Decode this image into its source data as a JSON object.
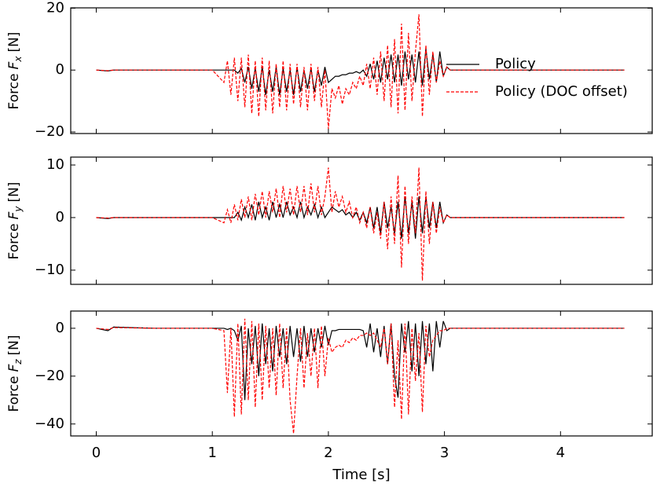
{
  "chart_data": [
    {
      "type": "line",
      "ylabel": "Force",
      "ylabel_symbol": "F",
      "ylabel_sub": "x",
      "ylabel_unit": "[N]",
      "xlim": [
        -0.22,
        4.79
      ],
      "xticks": [
        0,
        1,
        2,
        3,
        4
      ],
      "ylim": [
        -20.5,
        20.1
      ],
      "yticks": [
        {
          "value": -20,
          "label": "−20"
        },
        0,
        20
      ],
      "legend": "center right",
      "x": [
        0,
        0.1,
        0.15,
        0.5,
        1.0,
        1.1,
        1.13,
        1.16,
        1.19,
        1.22,
        1.25,
        1.28,
        1.31,
        1.34,
        1.37,
        1.4,
        1.43,
        1.46,
        1.49,
        1.52,
        1.55,
        1.58,
        1.61,
        1.64,
        1.67,
        1.7,
        1.73,
        1.76,
        1.79,
        1.82,
        1.85,
        1.88,
        1.91,
        1.94,
        1.97,
        2.0,
        2.03,
        2.06,
        2.09,
        2.12,
        2.15,
        2.18,
        2.21,
        2.24,
        2.27,
        2.3,
        2.33,
        2.36,
        2.39,
        2.42,
        2.45,
        2.48,
        2.51,
        2.54,
        2.57,
        2.6,
        2.63,
        2.66,
        2.69,
        2.72,
        2.75,
        2.78,
        2.81,
        2.84,
        2.87,
        2.9,
        2.93,
        2.96,
        2.99,
        3.02,
        3.05,
        3.1,
        3.5,
        4.0,
        4.55
      ],
      "series": [
        {
          "name": "Policy",
          "color": "#000000",
          "dash": "solid",
          "values": [
            0,
            -0.3,
            0,
            0,
            0,
            0,
            0,
            0,
            0,
            -1,
            0.5,
            -4,
            1,
            -6,
            0.5,
            -7,
            1,
            -8,
            0,
            -7,
            1,
            -8,
            0.5,
            -7,
            0,
            -8,
            1,
            -7,
            0,
            -6,
            0.5,
            -7,
            0,
            -5,
            1,
            -4,
            -3,
            -2,
            -2,
            -1.5,
            -1.5,
            -1,
            -1,
            -0.5,
            -1,
            0,
            -2,
            2,
            -3,
            3,
            -4,
            4,
            -3,
            5,
            -4,
            5,
            -5,
            6,
            -3,
            5,
            -4,
            6,
            -5,
            7,
            -3,
            5,
            -4,
            6,
            -2,
            1,
            0,
            0,
            0,
            0,
            0
          ]
        },
        {
          "name": "Policy (DOC offset)",
          "color": "#ff0000",
          "dash": "dashed",
          "values": [
            0,
            -0.2,
            0,
            0,
            0,
            -4,
            3,
            -8,
            4,
            -10,
            4,
            -12,
            5,
            -14,
            3,
            -15,
            4,
            -13,
            3,
            -14,
            2,
            -12,
            3,
            -13,
            2,
            -11,
            2,
            -12,
            1,
            -13,
            2,
            -10,
            1,
            -12,
            0,
            -19,
            -6,
            -9,
            -5,
            -11,
            -6,
            -8,
            -4,
            -6,
            -2,
            -5,
            2,
            -6,
            4,
            -8,
            6,
            -10,
            8,
            -12,
            10,
            -14,
            15,
            -13,
            12,
            -10,
            6,
            18,
            -15,
            8,
            -8,
            6,
            -4,
            3,
            -2,
            1,
            0,
            0,
            0,
            0,
            0
          ]
        }
      ]
    },
    {
      "type": "line",
      "ylabel": "Force",
      "ylabel_symbol": "F",
      "ylabel_sub": "y",
      "ylabel_unit": "[N]",
      "xlim": [
        -0.22,
        4.79
      ],
      "xticks": [
        0,
        1,
        2,
        3,
        4
      ],
      "ylim": [
        -12.7,
        11.5
      ],
      "yticks": [
        {
          "value": -10,
          "label": "−10"
        },
        0,
        10
      ],
      "x": [
        0,
        0.1,
        0.15,
        0.5,
        1.0,
        1.1,
        1.13,
        1.16,
        1.19,
        1.22,
        1.25,
        1.28,
        1.31,
        1.34,
        1.37,
        1.4,
        1.43,
        1.46,
        1.49,
        1.52,
        1.55,
        1.58,
        1.61,
        1.64,
        1.67,
        1.7,
        1.73,
        1.76,
        1.79,
        1.82,
        1.85,
        1.88,
        1.91,
        1.94,
        1.97,
        2.0,
        2.03,
        2.06,
        2.09,
        2.12,
        2.15,
        2.18,
        2.21,
        2.24,
        2.27,
        2.3,
        2.33,
        2.36,
        2.39,
        2.42,
        2.45,
        2.48,
        2.51,
        2.54,
        2.57,
        2.6,
        2.63,
        2.66,
        2.69,
        2.72,
        2.75,
        2.78,
        2.81,
        2.84,
        2.87,
        2.9,
        2.93,
        2.96,
        2.99,
        3.02,
        3.05,
        3.1,
        3.5,
        4.0,
        4.55
      ],
      "series": [
        {
          "color": "#000000",
          "dash": "solid",
          "values": [
            0,
            -0.2,
            0,
            0,
            0,
            0,
            0,
            0,
            0,
            1,
            -0.5,
            2,
            0,
            2.5,
            -0.5,
            3,
            0,
            2,
            -0.5,
            3,
            0,
            2.5,
            0,
            3,
            0.5,
            2,
            0,
            3,
            0,
            2,
            0.5,
            2.5,
            0,
            2,
            0,
            1,
            2,
            1.5,
            1,
            1.5,
            0.5,
            1,
            0,
            1,
            -0.5,
            1,
            -1,
            2,
            -2,
            2,
            -3,
            3,
            -2,
            2,
            -3,
            3,
            -4,
            4,
            -3,
            3,
            -4,
            4,
            -3,
            4,
            -2,
            3,
            -2,
            3,
            -1,
            0.5,
            0,
            0,
            0,
            0,
            0
          ]
        },
        {
          "color": "#ff0000",
          "dash": "dashed",
          "values": [
            0,
            -0.1,
            0,
            0,
            0,
            -1,
            1.5,
            -1,
            2.5,
            -0.5,
            3.5,
            0,
            4,
            -0.5,
            4.5,
            0.5,
            5,
            0,
            5,
            1,
            5.5,
            0,
            6,
            1,
            5.5,
            0.5,
            6,
            1,
            6,
            0.5,
            6.5,
            1,
            6,
            0.5,
            4,
            9.5,
            1,
            5,
            2,
            4,
            1,
            3,
            0,
            2,
            -1,
            1,
            -2,
            2,
            -3,
            1,
            -4,
            3,
            -6,
            4,
            -5,
            8,
            -9.5,
            6,
            -5,
            4,
            -3,
            9.5,
            -12,
            5,
            -5,
            3,
            -3,
            2,
            -1,
            0.5,
            0,
            0,
            0,
            0,
            0
          ]
        }
      ]
    },
    {
      "type": "line",
      "ylabel": "Force",
      "ylabel_symbol": "F",
      "ylabel_sub": "z",
      "ylabel_unit": "[N]",
      "xlabel": "Time [s]",
      "xticklabels": true,
      "xlim": [
        -0.22,
        4.79
      ],
      "xticks": [
        0,
        1,
        2,
        3,
        4
      ],
      "ylim": [
        -45,
        7.2
      ],
      "yticks": [
        {
          "value": -40,
          "label": "−40"
        },
        {
          "value": -20,
          "label": "−20"
        },
        0
      ],
      "x": [
        0,
        0.1,
        0.15,
        0.5,
        1.0,
        1.1,
        1.13,
        1.16,
        1.19,
        1.22,
        1.25,
        1.28,
        1.31,
        1.34,
        1.37,
        1.4,
        1.43,
        1.46,
        1.49,
        1.52,
        1.55,
        1.58,
        1.61,
        1.64,
        1.67,
        1.7,
        1.73,
        1.76,
        1.79,
        1.82,
        1.85,
        1.88,
        1.91,
        1.94,
        1.97,
        2.0,
        2.03,
        2.06,
        2.09,
        2.12,
        2.15,
        2.18,
        2.21,
        2.24,
        2.27,
        2.3,
        2.33,
        2.36,
        2.39,
        2.42,
        2.45,
        2.48,
        2.51,
        2.54,
        2.57,
        2.6,
        2.63,
        2.66,
        2.69,
        2.72,
        2.75,
        2.78,
        2.81,
        2.84,
        2.87,
        2.9,
        2.93,
        2.96,
        2.99,
        3.02,
        3.05,
        3.1,
        3.5,
        4.0,
        4.55
      ],
      "series": [
        {
          "color": "#000000",
          "dash": "solid",
          "values": [
            0,
            -1,
            0.5,
            0,
            0,
            0,
            -0.5,
            0,
            -1,
            -5,
            1,
            -30,
            0,
            -15,
            1,
            -20,
            2,
            -15,
            0,
            -18,
            1,
            -12,
            0,
            -15,
            1,
            -12,
            0,
            -14,
            1,
            -12,
            0,
            -10,
            0,
            -8,
            1,
            -7,
            -1,
            -1,
            -0.5,
            -0.5,
            -0.5,
            -0.5,
            -0.5,
            -0.5,
            -0.5,
            -1,
            -8,
            2,
            -10,
            0,
            -12,
            1,
            -15,
            2,
            -20,
            -29,
            2,
            -10,
            3,
            -18,
            2,
            -20,
            3,
            -15,
            2,
            -18,
            3,
            -8,
            3,
            -1,
            0,
            0,
            0,
            0,
            0
          ]
        },
        {
          "color": "#ff0000",
          "dash": "dashed",
          "values": [
            0,
            -0.5,
            0.3,
            0,
            0,
            -1,
            -27,
            0,
            -37,
            2,
            -36,
            4,
            -30,
            3,
            -33,
            2,
            -30,
            1,
            -25,
            0,
            -28,
            2,
            -25,
            0,
            -30,
            -44,
            -20,
            0,
            -25,
            -2,
            -20,
            0,
            -25,
            1,
            -20,
            -4,
            -10,
            -8,
            -7,
            -8,
            -5,
            -6,
            -4,
            -5,
            -3,
            -3,
            -2,
            -3,
            -2,
            -5,
            -8,
            0,
            -15,
            2,
            -33,
            -5,
            -38,
            2,
            -36,
            0,
            -22,
            -2,
            -35,
            1,
            -12,
            -5,
            -3,
            -1,
            -1,
            0,
            0,
            0,
            0,
            0,
            0
          ]
        }
      ]
    }
  ]
}
